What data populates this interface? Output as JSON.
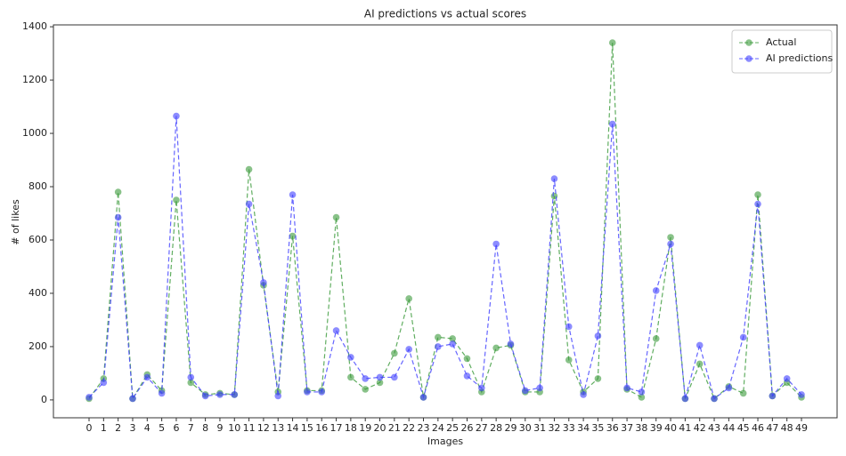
{
  "chart_data": {
    "type": "line",
    "title": "AI predictions vs actual scores",
    "xlabel": "Images",
    "ylabel": "# of likes",
    "x": [
      0,
      1,
      2,
      3,
      4,
      5,
      6,
      7,
      8,
      9,
      10,
      11,
      12,
      13,
      14,
      15,
      16,
      17,
      18,
      19,
      20,
      21,
      22,
      23,
      24,
      25,
      26,
      27,
      28,
      29,
      30,
      31,
      32,
      33,
      34,
      35,
      36,
      37,
      38,
      39,
      40,
      41,
      42,
      43,
      44,
      45,
      46,
      47,
      48,
      49
    ],
    "xticks": [
      0,
      1,
      2,
      3,
      4,
      5,
      6,
      7,
      8,
      9,
      10,
      11,
      12,
      13,
      14,
      15,
      16,
      17,
      18,
      19,
      20,
      21,
      22,
      23,
      24,
      25,
      26,
      27,
      28,
      29,
      30,
      31,
      32,
      33,
      34,
      35,
      36,
      37,
      38,
      39,
      40,
      41,
      42,
      43,
      44,
      45,
      46,
      47,
      48,
      49
    ],
    "xlim": [
      -2.45,
      51.45
    ],
    "ylim": [
      -67,
      1407
    ],
    "yticks": [
      0,
      200,
      400,
      600,
      800,
      1000,
      1200,
      1400
    ],
    "grid": false,
    "legend": "upper right",
    "series": [
      {
        "name": "Actual",
        "color": "#3a9a3a",
        "values": [
          5,
          80,
          780,
          5,
          95,
          35,
          750,
          65,
          20,
          25,
          20,
          865,
          430,
          30,
          615,
          35,
          35,
          685,
          85,
          40,
          65,
          175,
          380,
          10,
          235,
          230,
          155,
          30,
          195,
          205,
          30,
          30,
          765,
          150,
          30,
          80,
          1340,
          40,
          10,
          230,
          610,
          5,
          135,
          5,
          50,
          25,
          770,
          15,
          65,
          10
        ]
      },
      {
        "name": "AI predictions",
        "color": "#4040ff",
        "values": [
          10,
          65,
          685,
          5,
          85,
          25,
          1065,
          85,
          15,
          20,
          20,
          735,
          440,
          15,
          770,
          30,
          30,
          260,
          160,
          80,
          85,
          85,
          190,
          10,
          200,
          210,
          90,
          45,
          585,
          210,
          35,
          45,
          830,
          275,
          20,
          240,
          1035,
          45,
          30,
          410,
          585,
          5,
          205,
          5,
          45,
          235,
          735,
          15,
          80,
          20
        ]
      }
    ]
  }
}
